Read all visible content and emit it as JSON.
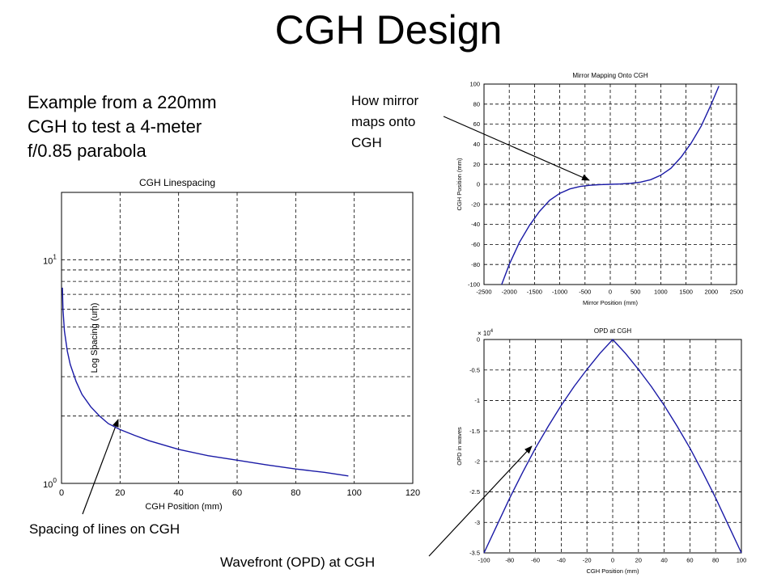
{
  "slide": {
    "title": "CGH Design",
    "description": [
      "Example from a 220mm",
      "CGH to test a 4-meter",
      "f/0.85 parabola"
    ],
    "callouts": {
      "mirror_map": [
        "How mirror",
        "maps onto",
        "CGH"
      ],
      "spacing": "Spacing of lines on CGH",
      "wavefront": "Wavefront (OPD) at CGH"
    }
  },
  "chart_data": [
    {
      "type": "line",
      "title": "CGH Linespacing",
      "xlabel": "CGH Position (mm)",
      "ylabel": "Log Spacing (um)",
      "xlim": [
        0,
        120
      ],
      "ylim": [
        1,
        20
      ],
      "yscale": "log",
      "grid": true,
      "xticks": [
        0,
        20,
        40,
        60,
        80,
        100,
        120
      ],
      "yticks": [
        "10^0",
        "10^1"
      ],
      "series": [
        {
          "x": [
            0.3,
            0.5,
            1,
            2,
            3,
            5,
            7,
            10,
            13,
            16,
            20,
            25,
            30,
            40,
            50,
            60,
            70,
            80,
            90,
            98
          ],
          "y": [
            7.5,
            6.0,
            4.8,
            3.9,
            3.4,
            2.85,
            2.5,
            2.2,
            2.0,
            1.85,
            1.74,
            1.64,
            1.55,
            1.42,
            1.33,
            1.27,
            1.21,
            1.16,
            1.12,
            1.08
          ]
        }
      ]
    },
    {
      "type": "line",
      "title": "Mirror Mapping Onto CGH",
      "xlabel": "Mirror Position (mm)",
      "ylabel": "CGH Position (mm)",
      "xlim": [
        -2500,
        2500
      ],
      "ylim": [
        -100,
        100
      ],
      "grid": true,
      "xticks": [
        -2500,
        -2000,
        -1500,
        -1000,
        -500,
        0,
        500,
        1000,
        1500,
        2000,
        2500
      ],
      "yticks": [
        -100,
        -80,
        -60,
        -40,
        -20,
        0,
        20,
        40,
        60,
        80,
        100
      ],
      "series": [
        {
          "x": [
            -2150,
            -2000,
            -1800,
            -1600,
            -1400,
            -1200,
            -1000,
            -800,
            -600,
            -400,
            -200,
            0,
            200,
            400,
            600,
            800,
            1000,
            1200,
            1400,
            1600,
            1800,
            2000,
            2150
          ],
          "y": [
            -100,
            -80,
            -58,
            -41,
            -27,
            -16,
            -9,
            -4.6,
            -2.2,
            -1.0,
            -0.3,
            0,
            0.3,
            1.0,
            2.2,
            4.6,
            9,
            16,
            27,
            41,
            58,
            80,
            98
          ]
        }
      ]
    },
    {
      "type": "line",
      "title": "OPD at CGH",
      "xlabel": "CGH Position (mm)",
      "ylabel": "OPD in waves",
      "scale_label": "× 10^4",
      "xlim": [
        -100,
        100
      ],
      "ylim": [
        -3.5,
        0
      ],
      "grid": true,
      "xticks": [
        -100,
        -80,
        -60,
        -40,
        -20,
        0,
        20,
        40,
        60,
        80,
        100
      ],
      "yticks": [
        0,
        -0.5,
        -1,
        -1.5,
        -2,
        -2.5,
        -3,
        -3.5
      ],
      "series": [
        {
          "x": [
            -100,
            -90,
            -80,
            -70,
            -60,
            -50,
            -40,
            -30,
            -20,
            -10,
            0,
            10,
            20,
            30,
            40,
            50,
            60,
            70,
            80,
            90,
            100
          ],
          "y": [
            -3.5,
            -3.05,
            -2.6,
            -2.18,
            -1.78,
            -1.42,
            -1.08,
            -0.77,
            -0.49,
            -0.23,
            0,
            -0.23,
            -0.49,
            -0.77,
            -1.08,
            -1.42,
            -1.78,
            -2.18,
            -2.6,
            -3.05,
            -3.5
          ]
        }
      ]
    }
  ]
}
